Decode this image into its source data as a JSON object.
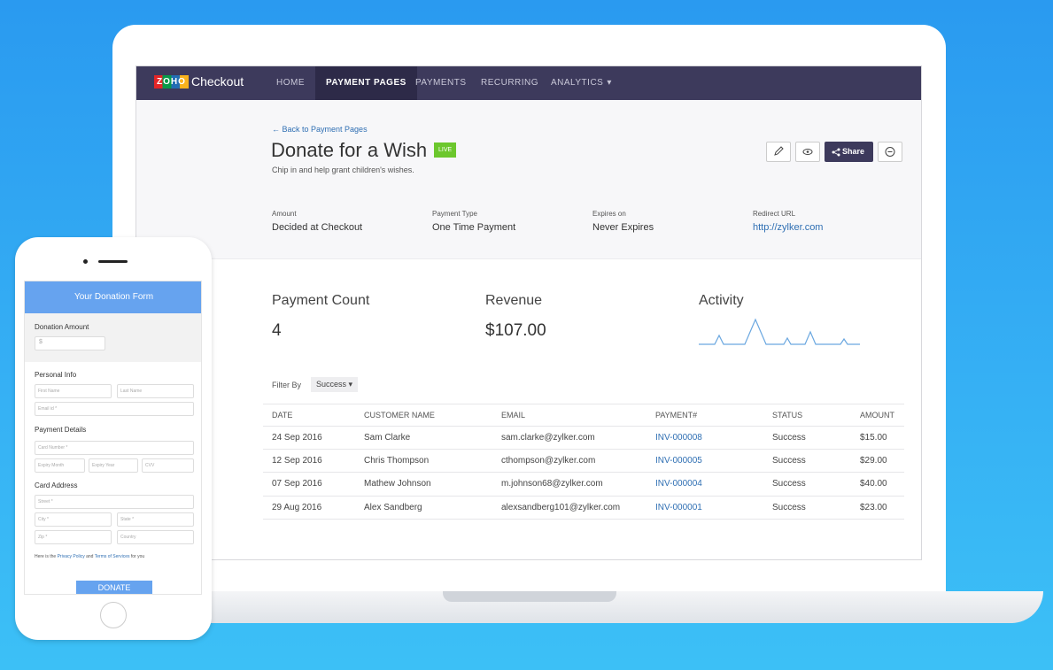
{
  "header": {
    "logo": "ZOHO",
    "brand": "Checkout",
    "nav": [
      "HOME",
      "PAYMENT PAGES",
      "PAYMENTS",
      "RECURRING",
      "ANALYTICS"
    ]
  },
  "page": {
    "back_link": "Back to Payment Pages",
    "title": "Donate for a Wish",
    "badge": "LIVE",
    "subtitle": "Chip in and help grant children's wishes.",
    "share": "Share",
    "details": [
      {
        "label": "Amount",
        "value": "Decided at Checkout"
      },
      {
        "label": "Payment Type",
        "value": "One Time Payment"
      },
      {
        "label": "Expires on",
        "value": "Never Expires"
      },
      {
        "label": "Redirect URL",
        "value": "http://zylker.com"
      }
    ],
    "stats": [
      {
        "label": "Payment Count",
        "value": "4"
      },
      {
        "label": "Revenue",
        "value": "$107.00"
      },
      {
        "label": "Activity"
      }
    ],
    "filter_label": "Filter By",
    "filter_value": "Success"
  },
  "table": {
    "columns": [
      "DATE",
      "CUSTOMER NAME",
      "EMAIL",
      "PAYMENT#",
      "STATUS",
      "AMOUNT"
    ],
    "rows": [
      [
        "24 Sep 2016",
        "Sam Clarke",
        "sam.clarke@zylker.com",
        "INV-000008",
        "Success",
        "$15.00"
      ],
      [
        "12 Sep 2016",
        "Chris Thompson",
        "cthompson@zylker.com",
        "INV-000005",
        "Success",
        "$29.00"
      ],
      [
        "07 Sep 2016",
        "Mathew Johnson",
        "m.johnson68@zylker.com",
        "INV-000004",
        "Success",
        "$40.00"
      ],
      [
        "29 Aug 2016",
        "Alex Sandberg",
        "alexsandberg101@zylker.com",
        "INV-000001",
        "Success",
        "$23.00"
      ]
    ]
  },
  "phone_form": {
    "title": "Your Donation Form",
    "amount_label": "Donation Amount",
    "currency": "$",
    "personal_info": "Personal Info",
    "first_name": "First Name",
    "last_name": "Last Name",
    "email": "Email id *",
    "payment_details": "Payment Details",
    "card_number": "Card Number *",
    "expiry_month": "Expiry Month",
    "expiry_year": "Expiry Year",
    "cvv": "CVV",
    "card_address": "Card Address",
    "street": "Street *",
    "city": "City *",
    "state": "State *",
    "zip": "Zip *",
    "country": "Country",
    "policy": [
      "Here is the",
      "Privacy Policy",
      "and",
      "Terms of Services",
      "for you"
    ],
    "button": "DONATE"
  }
}
